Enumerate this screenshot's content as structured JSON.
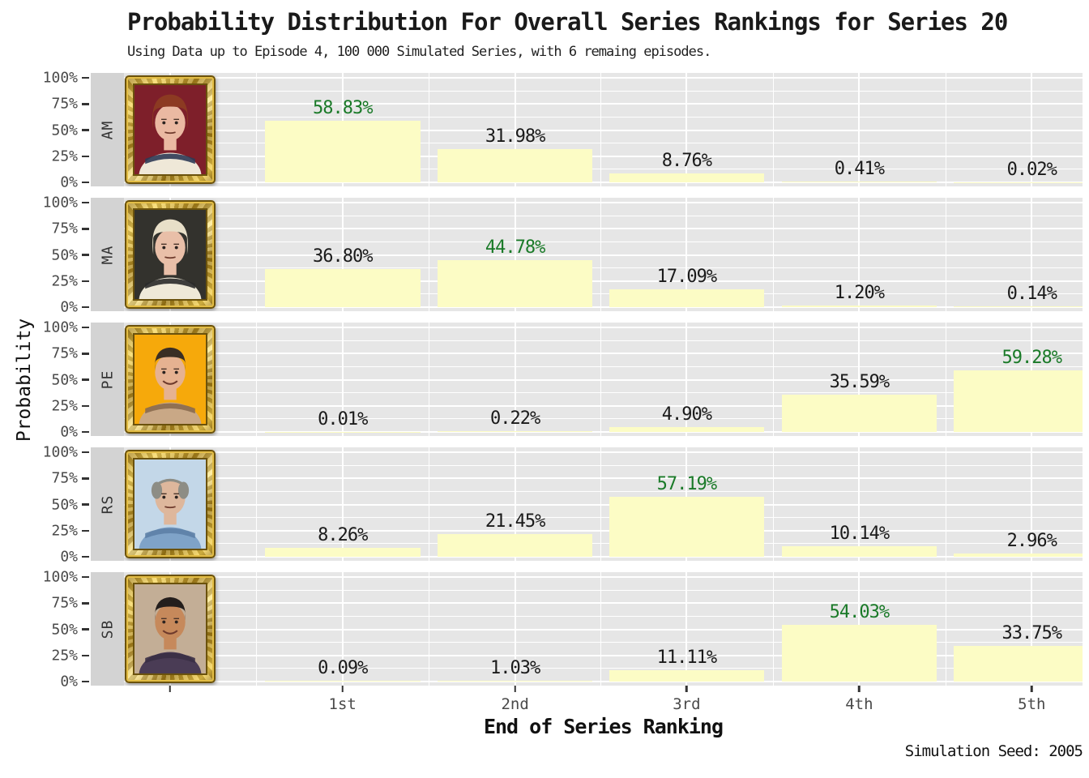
{
  "title": "Probability Distribution For Overall Series Rankings for Series 20",
  "subtitle": "Using Data up to Episode 4, 100 000 Simulated Series, with 6 remaing episodes.",
  "ylab": "Probability",
  "xlab": "End of Series Ranking",
  "caption": "Simulation Seed: 2005",
  "colors": {
    "bar_fill": "#fcfcc5",
    "panel_bg": "#e6e6e6",
    "strip_bg": "#d3d3d3",
    "gridline": "#ffffff",
    "label_black": "#1a1a1a",
    "label_green": "#1a7a28",
    "axis_text": "#4a4a4a",
    "frame_gold": "#d4a72c"
  },
  "chart_data": {
    "type": "bar",
    "orientation": "vertical",
    "facet_layout": "rows",
    "categories": [
      "1st",
      "2nd",
      "3rd",
      "4th",
      "5th"
    ],
    "yticks": [
      "100%",
      "75%",
      "50%",
      "25%",
      "0%"
    ],
    "ylim": [
      0,
      100
    ],
    "grid": "white major 25% / minor 12.5%",
    "facets": [
      {
        "strip": "AM",
        "portrait": {
          "desc": "woman, auburn curly hair, hand on cheek, dark red background, cream sweater with navy collar",
          "bg": "#7e1f2a",
          "hair": "#8c3a22",
          "skin": "#eab9a2",
          "shirt": "#efe8d8",
          "accent": "#2e3a55",
          "style": "long",
          "smile": false
        },
        "values": [
          58.83,
          31.98,
          8.76,
          0.41,
          0.02
        ],
        "labels": [
          "58.83%",
          "31.98%",
          "8.76%",
          "0.41%",
          "0.02%"
        ],
        "highlight_index": 0
      },
      {
        "strip": "MA",
        "portrait": {
          "desc": "woman, platinum blonde shag, chin on hand, dark background, black-and-white striped top",
          "bg": "#33322d",
          "hair": "#e8dfc8",
          "skin": "#e9bfa8",
          "shirt": "#efe9d8",
          "accent": "#2a2a2a",
          "style": "long",
          "smile": false
        },
        "values": [
          36.8,
          44.78,
          17.09,
          1.2,
          0.14
        ],
        "labels": [
          "36.80%",
          "44.78%",
          "17.09%",
          "1.20%",
          "0.14%"
        ],
        "highlight_index": 1
      },
      {
        "strip": "PE",
        "portrait": {
          "desc": "man, short dark hair, big smile, orange background, patterned tan shirt",
          "bg": "#f6a90b",
          "hair": "#3a2e24",
          "skin": "#e6b291",
          "shirt": "#c9a886",
          "accent": "#8a6a4e",
          "style": "short",
          "smile": true
        },
        "values": [
          0.01,
          0.22,
          4.9,
          35.59,
          59.28
        ],
        "labels": [
          "0.01%",
          "0.22%",
          "4.90%",
          "35.59%",
          "59.28%"
        ],
        "highlight_index": 4
      },
      {
        "strip": "RS",
        "portrait": {
          "desc": "man, grey receding hair and stubble, looking up, light blue sky background, blue check shirt",
          "bg": "#c3d7e8",
          "hair": "#8d8d85",
          "skin": "#deb79c",
          "shirt": "#7fa3c8",
          "accent": "#5d7fa6",
          "style": "balding",
          "smile": false
        },
        "values": [
          8.26,
          21.45,
          57.19,
          10.14,
          2.96
        ],
        "labels": [
          "8.26%",
          "21.45%",
          "57.19%",
          "10.14%",
          "2.96%"
        ],
        "highlight_index": 2
      },
      {
        "strip": "SB",
        "portrait": {
          "desc": "man, black hair, smiling, beige background, dark purple shirt",
          "bg": "#c3ae96",
          "hair": "#241e1c",
          "skin": "#c6895b",
          "shirt": "#4a3c55",
          "accent": "#3a2f45",
          "style": "short",
          "smile": true
        },
        "values": [
          0.09,
          1.03,
          11.11,
          54.03,
          33.75
        ],
        "labels": [
          "0.09%",
          "1.03%",
          "11.11%",
          "54.03%",
          "33.75%"
        ],
        "highlight_index": 3
      }
    ]
  }
}
